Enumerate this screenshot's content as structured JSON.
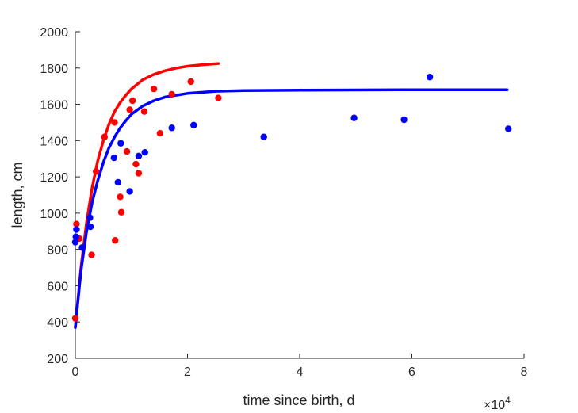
{
  "chart_data": {
    "type": "scatter",
    "title": "",
    "xlabel": "time since birth, d",
    "ylabel": "length, cm",
    "x_multiplier_label": "×10",
    "x_multiplier_exponent": "4",
    "xlim": [
      0,
      80000
    ],
    "ylim": [
      200,
      2000
    ],
    "x_ticks": [
      0,
      20000,
      40000,
      60000,
      80000
    ],
    "x_tick_labels": [
      "0",
      "2",
      "4",
      "6",
      "8"
    ],
    "y_ticks": [
      200,
      400,
      600,
      800,
      1000,
      1200,
      1400,
      1600,
      1800,
      2000
    ],
    "y_tick_labels": [
      "200",
      "400",
      "600",
      "800",
      "1000",
      "1200",
      "1400",
      "1600",
      "1800",
      "2000"
    ],
    "grid": false,
    "box": false,
    "series": [
      {
        "color": "#ff0000",
        "kind": "scatter",
        "points": [
          [
            0,
            420
          ],
          [
            200,
            940
          ],
          [
            700,
            860
          ],
          [
            2900,
            770
          ],
          [
            3700,
            1230
          ],
          [
            5200,
            1420
          ],
          [
            7000,
            1500
          ],
          [
            7100,
            850
          ],
          [
            8000,
            1090
          ],
          [
            8200,
            1005
          ],
          [
            9200,
            1340
          ],
          [
            9700,
            1570
          ],
          [
            10200,
            1620
          ],
          [
            10800,
            1270
          ],
          [
            11300,
            1220
          ],
          [
            12300,
            1560
          ],
          [
            14000,
            1685
          ],
          [
            15100,
            1440
          ],
          [
            17200,
            1655
          ],
          [
            20600,
            1725
          ],
          [
            25500,
            1635
          ]
        ]
      },
      {
        "color": "#0000ff",
        "kind": "scatter",
        "points": [
          [
            0,
            840
          ],
          [
            100,
            870
          ],
          [
            200,
            910
          ],
          [
            1200,
            810
          ],
          [
            2600,
            975
          ],
          [
            2700,
            925
          ],
          [
            6900,
            1305
          ],
          [
            7600,
            1170
          ],
          [
            8100,
            1385
          ],
          [
            9700,
            1120
          ],
          [
            11300,
            1315
          ],
          [
            12400,
            1335
          ],
          [
            17200,
            1470
          ],
          [
            21100,
            1485
          ],
          [
            33600,
            1420
          ],
          [
            49700,
            1525
          ],
          [
            58600,
            1515
          ],
          [
            63200,
            1750
          ],
          [
            77200,
            1465
          ]
        ]
      },
      {
        "color": "#ff0000",
        "kind": "curve",
        "points": [
          [
            0,
            370
          ],
          [
            1000,
            700
          ],
          [
            2000,
            950
          ],
          [
            3000,
            1140
          ],
          [
            4000,
            1290
          ],
          [
            5000,
            1400
          ],
          [
            6000,
            1490
          ],
          [
            7000,
            1560
          ],
          [
            8000,
            1610
          ],
          [
            9000,
            1650
          ],
          [
            10000,
            1685
          ],
          [
            12000,
            1735
          ],
          [
            14000,
            1765
          ],
          [
            16000,
            1785
          ],
          [
            18000,
            1800
          ],
          [
            20000,
            1810
          ],
          [
            22500,
            1818
          ],
          [
            25500,
            1825
          ]
        ]
      },
      {
        "color": "#0000ff",
        "kind": "curve",
        "points": [
          [
            0,
            370
          ],
          [
            1000,
            680
          ],
          [
            2000,
            900
          ],
          [
            3000,
            1060
          ],
          [
            4000,
            1180
          ],
          [
            5000,
            1280
          ],
          [
            6000,
            1360
          ],
          [
            7000,
            1420
          ],
          [
            8000,
            1470
          ],
          [
            9000,
            1510
          ],
          [
            10000,
            1545
          ],
          [
            12000,
            1590
          ],
          [
            14000,
            1620
          ],
          [
            16000,
            1640
          ],
          [
            20000,
            1660
          ],
          [
            25000,
            1672
          ],
          [
            30000,
            1676
          ],
          [
            40000,
            1678
          ],
          [
            60000,
            1680
          ],
          [
            77000,
            1680
          ]
        ]
      }
    ]
  }
}
